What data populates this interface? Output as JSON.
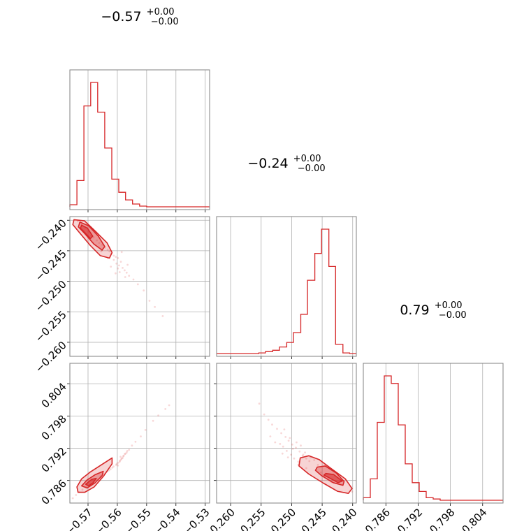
{
  "chart_data": {
    "type": "corner",
    "color": "#d62728",
    "parameters": [
      {
        "title_value": "−0.57",
        "title_plus": "+0.00",
        "title_minus": "−0.00",
        "range": [
          -0.5762,
          -0.5285
        ],
        "ticks": [
          -0.57,
          -0.56,
          -0.55,
          -0.54,
          -0.53
        ],
        "tick_labels": [
          "−0.57",
          "−0.56",
          "−0.55",
          "−0.54",
          "−0.53"
        ]
      },
      {
        "title_value": "−0.24",
        "title_plus": "+0.00",
        "title_minus": "−0.00",
        "range": [
          -0.2623,
          -0.2394
        ],
        "ticks": [
          -0.26,
          -0.255,
          -0.25,
          -0.245,
          -0.24
        ],
        "tick_labels": [
          "−0.260",
          "−0.255",
          "−0.250",
          "−0.245",
          "−0.240"
        ]
      },
      {
        "title_value": "0.79",
        "title_plus": "+0.00",
        "title_minus": "−0.00",
        "range": [
          0.7818,
          0.8078
        ],
        "ticks": [
          0.786,
          0.792,
          0.798,
          0.804
        ],
        "tick_labels": [
          "0.786",
          "0.792",
          "0.798",
          "0.804"
        ]
      }
    ],
    "histograms": [
      {
        "param": 0,
        "edges": [
          -0.5762,
          -0.5738,
          -0.5714,
          -0.5691,
          -0.5667,
          -0.5643,
          -0.5619,
          -0.5595,
          -0.5572,
          -0.5548,
          -0.5524,
          -0.55,
          -0.5476,
          -0.5453,
          -0.5429,
          -0.5405,
          -0.5381,
          -0.5357,
          -0.5333,
          -0.531,
          -0.5286
        ],
        "counts": [
          3,
          38,
          146,
          180,
          137,
          85,
          40,
          21,
          10,
          4,
          1,
          0,
          0,
          0,
          0,
          0,
          0,
          0,
          0,
          0
        ]
      },
      {
        "param": 1,
        "edges": [
          -0.2623,
          -0.2612,
          -0.26,
          -0.2589,
          -0.2577,
          -0.2566,
          -0.2554,
          -0.2543,
          -0.2531,
          -0.252,
          -0.2508,
          -0.2497,
          -0.2485,
          -0.2474,
          -0.2462,
          -0.2451,
          -0.2439,
          -0.2428,
          -0.2416,
          -0.2405,
          -0.2394
        ],
        "counts": [
          0,
          0,
          0,
          0,
          0,
          0,
          1,
          3,
          5,
          10,
          17,
          32,
          60,
          112,
          153,
          190,
          133,
          14,
          1,
          0
        ]
      },
      {
        "param": 2,
        "edges": [
          0.7818,
          0.7831,
          0.7844,
          0.7857,
          0.787,
          0.7883,
          0.7896,
          0.7909,
          0.7922,
          0.7935,
          0.7948,
          0.7961,
          0.7974,
          0.7987,
          0.8,
          0.8013,
          0.8026,
          0.8039,
          0.8052,
          0.8065,
          0.8078
        ],
        "counts": [
          2,
          17,
          62,
          99,
          93,
          60,
          29,
          14,
          7,
          2,
          1,
          0,
          0,
          0,
          0,
          0,
          0,
          0,
          0,
          0
        ]
      }
    ],
    "scatter_panels": [
      {
        "x_param": 0,
        "y_param": 1,
        "points": [
          [
            -0.5735,
            -0.2402
          ],
          [
            -0.5722,
            -0.2408
          ],
          [
            -0.571,
            -0.2412
          ],
          [
            -0.5715,
            -0.2417
          ],
          [
            -0.5698,
            -0.2419
          ],
          [
            -0.569,
            -0.2425
          ],
          [
            -0.5681,
            -0.2428
          ],
          [
            -0.567,
            -0.2433
          ],
          [
            -0.5662,
            -0.2437
          ],
          [
            -0.5651,
            -0.244
          ],
          [
            -0.5642,
            -0.2445
          ],
          [
            -0.5633,
            -0.2448
          ],
          [
            -0.5627,
            -0.2451
          ],
          [
            -0.562,
            -0.2455
          ],
          [
            -0.5612,
            -0.2458
          ],
          [
            -0.5605,
            -0.246
          ],
          [
            -0.5598,
            -0.2462
          ],
          [
            -0.5603,
            -0.2471
          ],
          [
            -0.5594,
            -0.2474
          ],
          [
            -0.5588,
            -0.2468
          ],
          [
            -0.5582,
            -0.2478
          ],
          [
            -0.5575,
            -0.2482
          ],
          [
            -0.5568,
            -0.2486
          ],
          [
            -0.556,
            -0.2491
          ],
          [
            -0.5585,
            -0.2452
          ],
          [
            -0.5612,
            -0.2465
          ],
          [
            -0.5592,
            -0.2485
          ],
          [
            -0.5573,
            -0.2493
          ],
          [
            -0.5545,
            -0.2497
          ],
          [
            -0.553,
            -0.2505
          ],
          [
            -0.551,
            -0.2515
          ],
          [
            -0.549,
            -0.2532
          ],
          [
            -0.5472,
            -0.2542
          ],
          [
            -0.5445,
            -0.2557
          ],
          [
            -0.5632,
            -0.2462
          ],
          [
            -0.5622,
            -0.2476
          ],
          [
            -0.5655,
            -0.2451
          ],
          [
            -0.5606,
            -0.2487
          ],
          [
            -0.5565,
            -0.2473
          ],
          [
            -0.5598,
            -0.2479
          ]
        ],
        "contours": [
          [
            [
              -0.5748,
              -0.2399
            ],
            [
              -0.5712,
              -0.2401
            ],
            [
              -0.5675,
              -0.2418
            ],
            [
              -0.5635,
              -0.2437
            ],
            [
              -0.5618,
              -0.2453
            ],
            [
              -0.5627,
              -0.2462
            ],
            [
              -0.5658,
              -0.2458
            ],
            [
              -0.5693,
              -0.2441
            ],
            [
              -0.5728,
              -0.2421
            ],
            [
              -0.5752,
              -0.2407
            ]
          ],
          [
            [
              -0.5728,
              -0.2403
            ],
            [
              -0.5698,
              -0.2409
            ],
            [
              -0.5665,
              -0.2426
            ],
            [
              -0.5643,
              -0.2443
            ],
            [
              -0.5652,
              -0.2449
            ],
            [
              -0.568,
              -0.2439
            ],
            [
              -0.5711,
              -0.2422
            ],
            [
              -0.5733,
              -0.2411
            ]
          ],
          [
            [
              -0.5722,
              -0.2408
            ],
            [
              -0.5702,
              -0.2413
            ],
            [
              -0.5684,
              -0.2426
            ],
            [
              -0.5692,
              -0.243
            ],
            [
              -0.5712,
              -0.242
            ],
            [
              -0.5726,
              -0.2413
            ]
          ]
        ]
      },
      {
        "x_param": 0,
        "y_param": 2,
        "points": [
          [
            -0.5752,
            0.7827
          ],
          [
            -0.5741,
            0.7833
          ],
          [
            -0.573,
            0.7838
          ],
          [
            -0.5719,
            0.7843
          ],
          [
            -0.5706,
            0.7849
          ],
          [
            -0.5693,
            0.7853
          ],
          [
            -0.5681,
            0.7858
          ],
          [
            -0.5669,
            0.7862
          ],
          [
            -0.5657,
            0.7868
          ],
          [
            -0.5646,
            0.7872
          ],
          [
            -0.5634,
            0.7877
          ],
          [
            -0.5623,
            0.7881
          ],
          [
            -0.5613,
            0.7886
          ],
          [
            -0.5604,
            0.7889
          ],
          [
            -0.5597,
            0.7893
          ],
          [
            -0.5591,
            0.7897
          ],
          [
            -0.5585,
            0.7901
          ],
          [
            -0.558,
            0.7905
          ],
          [
            -0.5575,
            0.7909
          ],
          [
            -0.5568,
            0.7912
          ],
          [
            -0.556,
            0.7917
          ],
          [
            -0.5592,
            0.7895
          ],
          [
            -0.5587,
            0.7899
          ],
          [
            -0.5582,
            0.7902
          ],
          [
            -0.5578,
            0.7906
          ],
          [
            -0.5572,
            0.791
          ],
          [
            -0.5566,
            0.7915
          ],
          [
            -0.5602,
            0.7891
          ],
          [
            -0.5598,
            0.7888
          ],
          [
            -0.5589,
            0.7904
          ],
          [
            -0.555,
            0.7925
          ],
          [
            -0.5538,
            0.7932
          ],
          [
            -0.552,
            0.7942
          ],
          [
            -0.5504,
            0.7954
          ],
          [
            -0.5478,
            0.7971
          ],
          [
            -0.546,
            0.7981
          ],
          [
            -0.5436,
            0.7993
          ],
          [
            -0.5423,
            0.8
          ],
          [
            -0.5617,
            0.7884
          ],
          [
            -0.5628,
            0.7879
          ]
        ],
        "contours": [
          [
            [
              -0.5738,
              0.7848
            ],
            [
              -0.5722,
              0.7863
            ],
            [
              -0.5692,
              0.7876
            ],
            [
              -0.5655,
              0.7889
            ],
            [
              -0.5618,
              0.7902
            ],
            [
              -0.5618,
              0.7891
            ],
            [
              -0.5647,
              0.7868
            ],
            [
              -0.5679,
              0.7848
            ],
            [
              -0.5711,
              0.7838
            ],
            [
              -0.5734,
              0.7838
            ]
          ],
          [
            [
              -0.5722,
              0.785
            ],
            [
              -0.5703,
              0.7861
            ],
            [
              -0.5675,
              0.7871
            ],
            [
              -0.5648,
              0.7877
            ],
            [
              -0.5652,
              0.7869
            ],
            [
              -0.5677,
              0.7855
            ],
            [
              -0.5703,
              0.7846
            ]
          ],
          [
            [
              -0.5708,
              0.7853
            ],
            [
              -0.5688,
              0.7862
            ],
            [
              -0.5672,
              0.7864
            ],
            [
              -0.5682,
              0.7856
            ],
            [
              -0.5698,
              0.785
            ]
          ]
        ]
      },
      {
        "x_param": 1,
        "y_param": 2,
        "points": [
          [
            -0.2553,
            0.8003
          ],
          [
            -0.2545,
            0.7983
          ],
          [
            -0.2538,
            0.7973
          ],
          [
            -0.2532,
            0.7964
          ],
          [
            -0.2524,
            0.7956
          ],
          [
            -0.2517,
            0.7948
          ],
          [
            -0.251,
            0.7941
          ],
          [
            -0.2505,
            0.7934
          ],
          [
            -0.2499,
            0.7927
          ],
          [
            -0.2493,
            0.7921
          ],
          [
            -0.2487,
            0.7914
          ],
          [
            -0.2481,
            0.7908
          ],
          [
            -0.2476,
            0.7901
          ],
          [
            -0.2471,
            0.7896
          ],
          [
            -0.2514,
            0.7923
          ],
          [
            -0.2508,
            0.7915
          ],
          [
            -0.2501,
            0.7908
          ],
          [
            -0.2496,
            0.7901
          ],
          [
            -0.2489,
            0.7895
          ],
          [
            -0.2527,
            0.7931
          ],
          [
            -0.2519,
            0.7928
          ],
          [
            -0.2503,
            0.7939
          ],
          [
            -0.2492,
            0.7931
          ],
          [
            -0.2485,
            0.7925
          ],
          [
            -0.2478,
            0.7912
          ],
          [
            -0.2469,
            0.7903
          ],
          [
            -0.2463,
            0.7898
          ],
          [
            -0.2457,
            0.7889
          ],
          [
            -0.2535,
            0.7942
          ],
          [
            -0.2512,
            0.7955
          ],
          [
            -0.2498,
            0.7919
          ],
          [
            -0.2482,
            0.7906
          ],
          [
            -0.2506,
            0.7903
          ],
          [
            -0.2515,
            0.791
          ],
          [
            -0.2489,
            0.7889
          ],
          [
            -0.2476,
            0.7883
          ],
          [
            -0.2452,
            0.7875
          ],
          [
            -0.2447,
            0.7868
          ],
          [
            -0.2435,
            0.7857
          ],
          [
            -0.2401,
            0.7839
          ]
        ],
        "contours": [
          [
            [
              -0.2486,
              0.7902
            ],
            [
              -0.2472,
              0.7906
            ],
            [
              -0.2455,
              0.7899
            ],
            [
              -0.2435,
              0.7882
            ],
            [
              -0.2412,
              0.7863
            ],
            [
              -0.2401,
              0.7845
            ],
            [
              -0.2407,
              0.7836
            ],
            [
              -0.2425,
              0.784
            ],
            [
              -0.2448,
              0.7855
            ],
            [
              -0.2472,
              0.7872
            ],
            [
              -0.2488,
              0.7887
            ]
          ],
          [
            [
              -0.2458,
              0.7885
            ],
            [
              -0.2445,
              0.7887
            ],
            [
              -0.2427,
              0.7874
            ],
            [
              -0.2414,
              0.7858
            ],
            [
              -0.2416,
              0.7851
            ],
            [
              -0.2432,
              0.7856
            ],
            [
              -0.2451,
              0.7869
            ],
            [
              -0.2461,
              0.7879
            ]
          ],
          [
            [
              -0.2444,
              0.7873
            ],
            [
              -0.2431,
              0.7871
            ],
            [
              -0.2417,
              0.7859
            ],
            [
              -0.2424,
              0.7856
            ],
            [
              -0.2437,
              0.7864
            ],
            [
              -0.2447,
              0.787
            ]
          ]
        ]
      }
    ]
  }
}
